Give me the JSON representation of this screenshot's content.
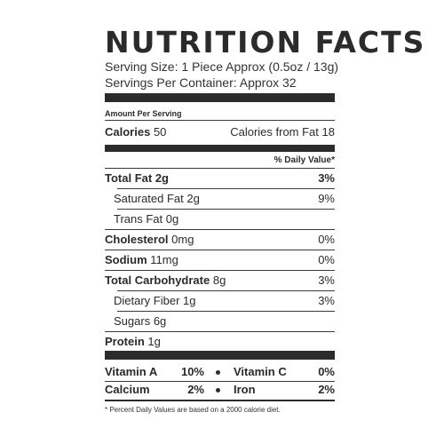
{
  "title": "NUTRITION FACTS",
  "serving_size": "Serving Size: 1 Piece Approx (0.5oz / 13g)",
  "servings_per_container": "Servings Per Container: Approx 32",
  "amount_per_serving": "Amount Per Serving",
  "calories": {
    "label": "Calories",
    "value": "50",
    "from_fat_label": "Calories from Fat",
    "from_fat_value": "18"
  },
  "daily_value_header": "% Daily Value*",
  "nutrients": [
    {
      "label": "Total Fat",
      "amount": "2g",
      "dv": "3%"
    },
    {
      "label": "Saturated Fat",
      "amount": "2g",
      "dv": "9%"
    },
    {
      "label": "Trans Fat",
      "amount": "0g",
      "dv": ""
    },
    {
      "label": "Cholesterol",
      "amount": "0mg",
      "dv": "0%"
    },
    {
      "label": "Sodium",
      "amount": "11mg",
      "dv": "0%"
    },
    {
      "label": "Total Carbohydrate",
      "amount": "8g",
      "dv": "3%"
    },
    {
      "label": "Dietary Fiber",
      "amount": "1g",
      "dv": "3%"
    },
    {
      "label": "Sugars",
      "amount": "6g",
      "dv": ""
    },
    {
      "label": "Protein",
      "amount": "1g",
      "dv": ""
    }
  ],
  "vitamins": [
    {
      "label": "Vitamin A",
      "value": "10%"
    },
    {
      "label": "Vitamin C",
      "value": "0%"
    },
    {
      "label": "Calcium",
      "value": "2%"
    },
    {
      "label": "Iron",
      "value": "2%"
    }
  ],
  "footnote": "* Percent Daily Values are based on a 2000 calorie diet."
}
